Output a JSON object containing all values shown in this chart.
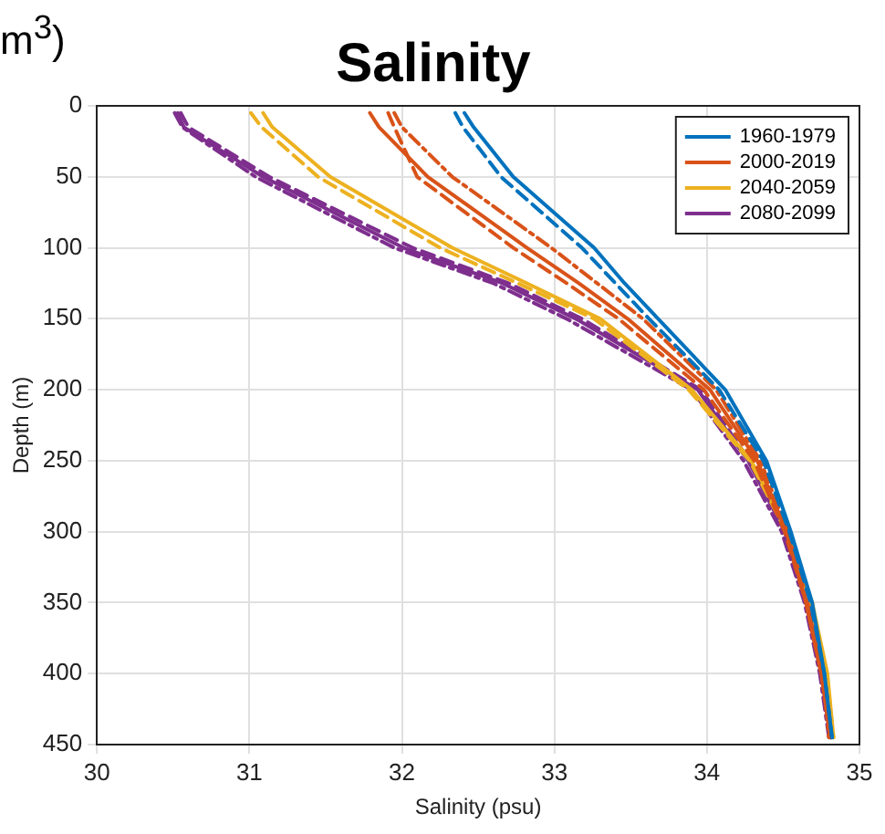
{
  "chart_data": {
    "type": "line",
    "title": "Salinity",
    "xlabel": "Salinity (psu)",
    "ylabel": "Depth (m)",
    "annotations": [
      "m$^{3}$)"
    ],
    "xlim": [
      30,
      35
    ],
    "xticks": [
      30,
      31,
      32,
      33,
      34,
      35
    ],
    "ylim": [
      450,
      0
    ],
    "yticks": [
      0,
      50,
      100,
      150,
      200,
      250,
      300,
      350,
      400,
      450
    ],
    "grid": true,
    "legend": "top right",
    "marker": "none",
    "series": [
      {
        "name": "1960-1979",
        "color": "#0072bd",
        "line_style": "solid",
        "x": [
          32.41,
          32.47,
          32.73,
          33.26,
          33.46,
          33.68,
          34.12,
          34.39,
          34.55,
          34.69,
          34.77,
          34.82
        ],
        "values": [
          5,
          15,
          50,
          100,
          125,
          150,
          200,
          250,
          300,
          350,
          400,
          445
        ]
      },
      {
        "color": "#0072bd",
        "line_style": "dashed",
        "x": [
          32.35,
          32.4,
          32.65,
          33.18,
          33.4,
          33.62,
          34.08,
          34.37,
          34.54,
          34.68,
          34.77,
          34.82
        ],
        "values": [
          5,
          15,
          50,
          100,
          125,
          150,
          200,
          250,
          300,
          350,
          400,
          445
        ]
      },
      {
        "name": "2000-2019",
        "color": "#d95319",
        "line_style": "solid",
        "x": [
          31.79,
          31.85,
          32.17,
          32.82,
          33.16,
          33.48,
          34.02,
          34.33,
          34.52,
          34.65,
          34.75,
          34.81
        ],
        "values": [
          5,
          15,
          50,
          100,
          125,
          150,
          200,
          250,
          300,
          350,
          400,
          445
        ]
      },
      {
        "color": "#d95319",
        "line_style": "dashed",
        "x": [
          31.91,
          31.95,
          32.1,
          32.73,
          33.08,
          33.42,
          33.98,
          34.31,
          34.51,
          34.65,
          34.75,
          34.81
        ],
        "values": [
          5,
          15,
          50,
          100,
          125,
          150,
          200,
          250,
          300,
          350,
          400,
          445
        ]
      },
      {
        "color": "#d95319",
        "line_style": "dotted",
        "x": [
          31.95,
          32.0,
          32.33,
          32.98,
          33.28,
          33.58,
          34.06,
          34.35,
          34.53,
          34.66,
          34.76,
          34.8
        ],
        "values": [
          5,
          15,
          50,
          100,
          125,
          150,
          200,
          250,
          300,
          350,
          400,
          445
        ]
      },
      {
        "name": "2040-2059",
        "color": "#edb120",
        "line_style": "solid",
        "x": [
          31.09,
          31.15,
          31.53,
          32.33,
          32.82,
          33.3,
          33.9,
          34.29,
          34.53,
          34.69,
          34.79,
          34.83
        ],
        "values": [
          5,
          15,
          50,
          100,
          125,
          150,
          200,
          250,
          300,
          350,
          400,
          445
        ]
      },
      {
        "color": "#edb120",
        "line_style": "dashed",
        "x": [
          31.01,
          31.08,
          31.45,
          32.25,
          32.76,
          33.26,
          33.88,
          34.28,
          34.52,
          34.68,
          34.78,
          34.83
        ],
        "values": [
          5,
          15,
          50,
          100,
          125,
          150,
          200,
          250,
          300,
          350,
          400,
          445
        ]
      },
      {
        "name": "2080-2099",
        "color": "#7e2f8e",
        "line_style": "solid",
        "x": [
          30.53,
          30.57,
          31.09,
          32.01,
          32.66,
          33.14,
          33.94,
          34.27,
          34.51,
          34.65,
          34.75,
          34.81
        ],
        "values": [
          5,
          15,
          50,
          100,
          125,
          150,
          200,
          250,
          300,
          350,
          400,
          445
        ]
      },
      {
        "color": "#7e2f8e",
        "line_style": "dashed",
        "x": [
          30.55,
          30.6,
          31.13,
          32.07,
          32.7,
          33.18,
          33.96,
          34.28,
          34.52,
          34.66,
          34.76,
          34.81
        ],
        "values": [
          5,
          15,
          50,
          100,
          125,
          150,
          200,
          250,
          300,
          350,
          400,
          445
        ]
      },
      {
        "color": "#7e2f8e",
        "line_style": "dotted",
        "x": [
          30.51,
          30.56,
          31.04,
          31.95,
          32.6,
          33.08,
          33.9,
          34.24,
          34.49,
          34.64,
          34.74,
          34.8
        ],
        "values": [
          5,
          15,
          50,
          100,
          125,
          150,
          200,
          250,
          300,
          350,
          400,
          445
        ]
      }
    ]
  }
}
